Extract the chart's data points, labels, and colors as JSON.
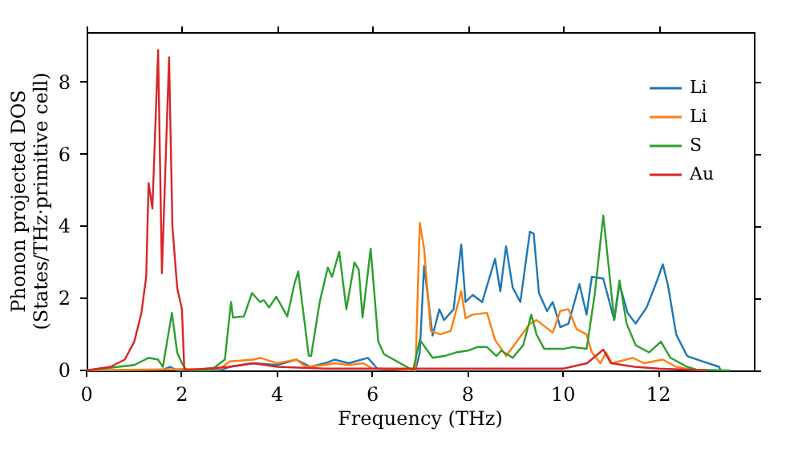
{
  "chart_data": {
    "type": "line",
    "xlabel": "Frequency (THz)",
    "ylabel": "Phonon projected DOS\n(States/THz·primitive cell)",
    "xlim": [
      0,
      14
    ],
    "ylim": [
      0,
      9.4
    ],
    "xticks": [
      0,
      2,
      4,
      6,
      8,
      10,
      12
    ],
    "yticks": [
      0,
      2,
      4,
      6,
      8
    ],
    "grid": false,
    "legend": "top right",
    "line_style": "solid",
    "marker": "none",
    "series": [
      {
        "name": "Li",
        "color": "#1f77b4",
        "x": [
          0,
          1.6,
          1.75,
          1.9,
          2.8,
          3.0,
          3.5,
          4.0,
          4.4,
          4.7,
          5.0,
          5.2,
          5.5,
          5.9,
          6.1,
          6.9,
          6.99,
          7.08,
          7.26,
          7.4,
          7.5,
          7.7,
          7.86,
          7.95,
          8.1,
          8.3,
          8.57,
          8.68,
          8.8,
          8.94,
          9.1,
          9.3,
          9.38,
          9.49,
          9.66,
          9.78,
          9.94,
          10.11,
          10.34,
          10.49,
          10.6,
          10.84,
          11.07,
          11.18,
          11.35,
          11.52,
          11.75,
          11.97,
          12.09,
          12.2,
          12.37,
          12.6,
          12.93,
          13.27,
          13.3
        ],
        "values": [
          0,
          0.02,
          0.1,
          0,
          0,
          0.1,
          0.2,
          0.15,
          0.3,
          0.1,
          0.2,
          0.3,
          0.2,
          0.35,
          0.05,
          0,
          0.5,
          2.9,
          0.97,
          1.7,
          1.4,
          1.7,
          3.5,
          1.9,
          2.1,
          1.9,
          3.1,
          2.2,
          3.45,
          2.3,
          1.9,
          3.85,
          3.8,
          2.15,
          1.65,
          1.9,
          1.2,
          1.3,
          2.4,
          1.55,
          2.6,
          2.55,
          1.4,
          2.4,
          1.6,
          1.3,
          1.75,
          2.5,
          2.95,
          2.35,
          1.0,
          0.4,
          0.25,
          0.1,
          0
        ]
      },
      {
        "name": "Li",
        "color": "#ff7f0e",
        "x": [
          0,
          2.8,
          3.0,
          3.5,
          3.65,
          4.0,
          4.4,
          4.6,
          5.0,
          5.2,
          5.5,
          5.8,
          6.0,
          6.9,
          6.99,
          7.08,
          7.22,
          7.42,
          7.64,
          7.86,
          7.95,
          8.1,
          8.4,
          8.57,
          8.8,
          8.97,
          9.3,
          9.44,
          9.78,
          9.94,
          10.11,
          10.28,
          10.49,
          10.6,
          10.78,
          10.9,
          11.02,
          11.46,
          11.69,
          12.09,
          12.37,
          12.7,
          13.0
        ],
        "values": [
          0,
          0.05,
          0.25,
          0.3,
          0.35,
          0.2,
          0.3,
          0.1,
          0.15,
          0.2,
          0.15,
          0.2,
          0.05,
          0,
          4.1,
          3.4,
          1.1,
          1.0,
          1.1,
          2.2,
          1.45,
          1.55,
          1.6,
          0.85,
          0.4,
          0.7,
          1.3,
          1.4,
          1.05,
          1.65,
          1.7,
          1.15,
          1.0,
          0.5,
          0.2,
          0.5,
          0.2,
          0.35,
          0.2,
          0.3,
          0.1,
          0.02,
          0
        ]
      },
      {
        "name": "S",
        "color": "#2ca02c",
        "x": [
          0,
          1.0,
          1.3,
          1.5,
          1.6,
          1.79,
          1.9,
          2.0,
          2.1,
          2.6,
          2.9,
          3.03,
          3.07,
          3.3,
          3.47,
          3.64,
          3.72,
          3.83,
          3.98,
          4.21,
          4.36,
          4.44,
          4.66,
          4.71,
          4.89,
          5.06,
          5.15,
          5.3,
          5.45,
          5.62,
          5.71,
          5.79,
          5.96,
          6.12,
          6.24,
          6.85,
          6.99,
          7.26,
          7.5,
          7.75,
          8.0,
          8.2,
          8.4,
          8.6,
          8.7,
          8.94,
          9.16,
          9.33,
          9.44,
          9.6,
          10.0,
          10.2,
          10.49,
          10.66,
          10.84,
          10.96,
          11.07,
          11.18,
          11.33,
          11.52,
          11.8,
          12.05,
          12.25,
          12.6,
          12.8,
          13.5
        ],
        "values": [
          0,
          0.15,
          0.35,
          0.3,
          0.1,
          1.6,
          0.5,
          0.2,
          0,
          0,
          0.3,
          1.9,
          1.47,
          1.5,
          2.15,
          1.9,
          1.95,
          1.75,
          2.05,
          1.5,
          2.4,
          2.75,
          0.41,
          0.4,
          1.9,
          2.86,
          2.6,
          3.3,
          1.7,
          3.0,
          2.8,
          1.47,
          3.38,
          0.8,
          0.45,
          0,
          0.85,
          0.35,
          0.4,
          0.5,
          0.55,
          0.65,
          0.65,
          0.4,
          0.55,
          0.35,
          0.7,
          1.55,
          1.0,
          0.6,
          0.6,
          0.65,
          0.6,
          2.1,
          4.3,
          2.8,
          1.4,
          2.5,
          1.3,
          0.7,
          0.5,
          0.8,
          0.35,
          0.1,
          0.02,
          0
        ]
      },
      {
        "name": "Au",
        "color": "#d62728",
        "x": [
          0,
          0.5,
          0.8,
          1.0,
          1.15,
          1.25,
          1.3,
          1.38,
          1.5,
          1.58,
          1.73,
          1.8,
          1.9,
          2.0,
          2.05,
          3.0,
          3.5,
          4.0,
          5.0,
          6.0,
          7.0,
          9.0,
          10.0,
          10.5,
          10.84,
          11.0,
          11.5,
          12.0,
          13.0
        ],
        "values": [
          0,
          0.1,
          0.3,
          0.8,
          1.6,
          2.6,
          5.2,
          4.5,
          8.9,
          2.7,
          8.7,
          4.0,
          2.3,
          1.7,
          0,
          0.1,
          0.2,
          0.1,
          0.05,
          0.05,
          0.05,
          0.05,
          0.05,
          0.2,
          0.58,
          0.2,
          0.1,
          0.05,
          0
        ]
      }
    ]
  }
}
